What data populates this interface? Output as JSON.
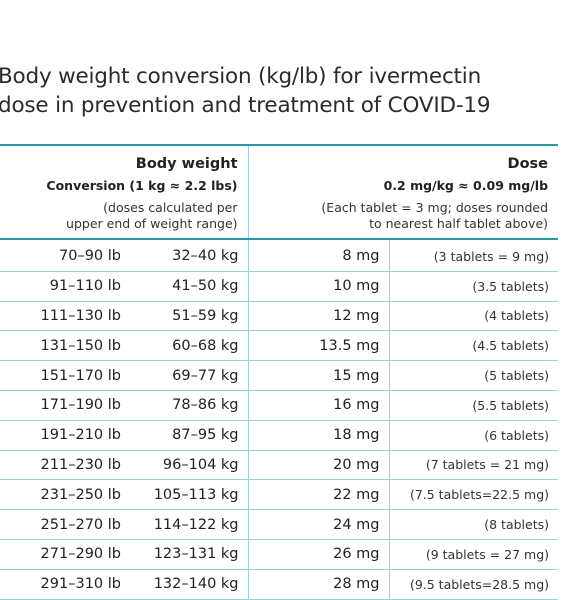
{
  "title": {
    "line1": "Body weight conversion (kg/lb) for ivermectin",
    "line2": "dose in prevention and treatment of COVID-19"
  },
  "header": {
    "body_weight": {
      "label": "Body weight",
      "conversion": "Conversion (1 kg ≈ 2.2 lbs)",
      "note_line1": "(doses calculated per",
      "note_line2": "upper end of weight range)"
    },
    "dose": {
      "label": "Dose",
      "rate": "0.2 mg/kg ≈ 0.09 mg/lb",
      "note_line1": "(Each tablet = 3 mg; doses rounded",
      "note_line2": "to nearest half tablet above)"
    }
  },
  "rows": [
    {
      "lb": "70–90 lb",
      "kg": "32–40 kg",
      "mg": "8 mg",
      "tablets": "(3 tablets = 9 mg)"
    },
    {
      "lb": "91–110 lb",
      "kg": "41–50 kg",
      "mg": "10 mg",
      "tablets": "(3.5 tablets)"
    },
    {
      "lb": "111–130 lb",
      "kg": "51–59 kg",
      "mg": "12 mg",
      "tablets": "(4 tablets)"
    },
    {
      "lb": "131–150 lb",
      "kg": "60–68 kg",
      "mg": "13.5 mg",
      "tablets": "(4.5 tablets)"
    },
    {
      "lb": "151–170 lb",
      "kg": "69–77 kg",
      "mg": "15 mg",
      "tablets": "(5 tablets)"
    },
    {
      "lb": "171–190 lb",
      "kg": "78–86 kg",
      "mg": "16 mg",
      "tablets": "(5.5 tablets)"
    },
    {
      "lb": "191–210 lb",
      "kg": "87–95 kg",
      "mg": "18 mg",
      "tablets": "(6 tablets)"
    },
    {
      "lb": "211–230 lb",
      "kg": "96–104 kg",
      "mg": "20 mg",
      "tablets": "(7 tablets = 21 mg)"
    },
    {
      "lb": "231–250 lb",
      "kg": "105–113 kg",
      "mg": "22 mg",
      "tablets": "(7.5 tablets=22.5 mg)"
    },
    {
      "lb": "251–270 lb",
      "kg": "114–122 kg",
      "mg": "24 mg",
      "tablets": "(8 tablets)"
    },
    {
      "lb": "271–290 lb",
      "kg": "123–131 kg",
      "mg": "26 mg",
      "tablets": "(9 tablets = 27 mg)"
    },
    {
      "lb": "291–310 lb",
      "kg": "132–140 kg",
      "mg": "28 mg",
      "tablets": "(9.5 tablets=28.5 mg)"
    }
  ]
}
